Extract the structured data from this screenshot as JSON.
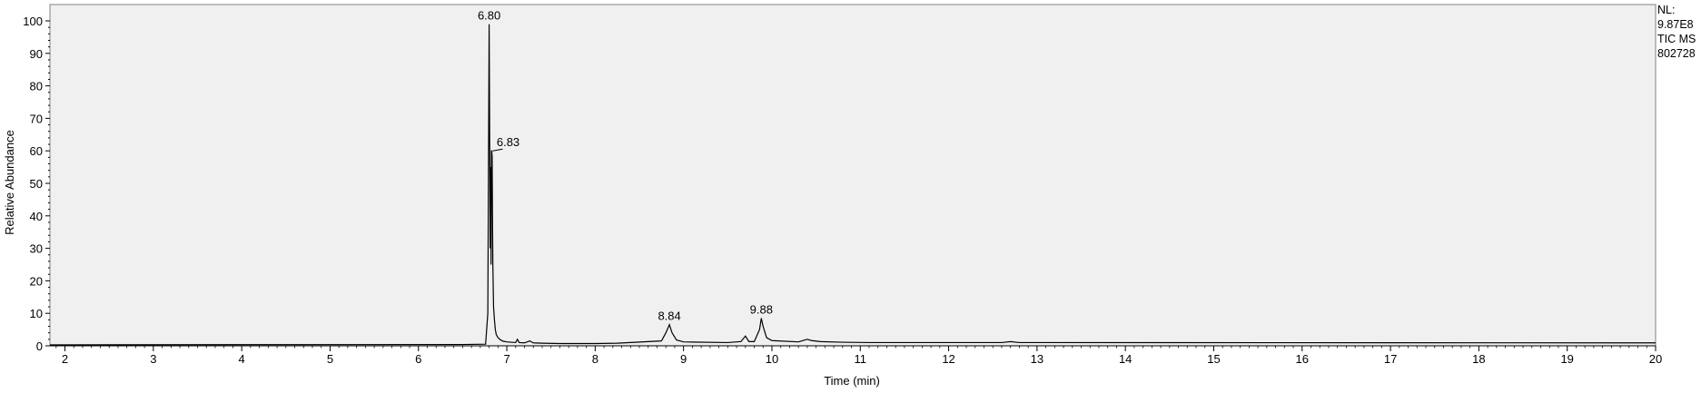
{
  "chart_data": {
    "type": "line",
    "xlabel": "Time (min)",
    "ylabel": "Relative Abundance",
    "xlim": [
      1.83,
      20
    ],
    "ylim": [
      0,
      100
    ],
    "x_ticks": [
      2,
      3,
      4,
      5,
      6,
      7,
      8,
      9,
      10,
      11,
      12,
      13,
      14,
      15,
      16,
      17,
      18,
      19,
      20
    ],
    "y_ticks": [
      0,
      10,
      20,
      30,
      40,
      50,
      60,
      70,
      80,
      90,
      100
    ],
    "grid": false,
    "series": [
      {
        "x": [
          1.83,
          6.5,
          6.76,
          6.785,
          6.8,
          6.805,
          6.812,
          6.818,
          6.822,
          6.826,
          6.83,
          6.834,
          6.838,
          6.842,
          6.85,
          6.86,
          6.87,
          6.88,
          6.9,
          6.93,
          6.96,
          7.0,
          7.05,
          7.1,
          7.12,
          7.14,
          7.2,
          7.26,
          7.3,
          7.4,
          7.6,
          8.0,
          8.25,
          8.75,
          8.8,
          8.84,
          8.87,
          8.92,
          9.0,
          9.5,
          9.65,
          9.7,
          9.74,
          9.8,
          9.86,
          9.88,
          9.9,
          9.94,
          10.0,
          10.3,
          10.4,
          10.45,
          10.55,
          10.8,
          11.1,
          12.6,
          12.7,
          12.8,
          20.0
        ],
        "y": [
          0.3,
          0.4,
          0.5,
          10,
          99,
          70,
          30,
          55,
          25,
          60,
          60,
          58,
          40,
          25,
          12,
          8,
          5,
          3.5,
          2.5,
          1.8,
          1.4,
          1.2,
          1.1,
          1.0,
          2.0,
          1.0,
          0.9,
          1.5,
          0.9,
          0.8,
          0.7,
          0.7,
          0.8,
          1.5,
          4,
          6.5,
          4,
          1.8,
          1.2,
          1.0,
          1.3,
          3,
          1.3,
          1.3,
          5,
          8.5,
          6,
          2.5,
          1.6,
          1.2,
          2.0,
          1.6,
          1.3,
          1.1,
          1.0,
          1.0,
          1.3,
          1.0,
          0.9
        ]
      }
    ],
    "peak_labels": [
      {
        "label": "6.80",
        "x": 6.8,
        "y": 99
      },
      {
        "label": "6.83",
        "x": 6.83,
        "y": 60
      },
      {
        "label": "8.84",
        "x": 8.84,
        "y": 6.5
      },
      {
        "label": "9.88",
        "x": 9.88,
        "y": 8.5
      }
    ]
  },
  "header": {
    "nl_label": "NL:",
    "nl_value": "9.87E8",
    "trace_type": "TIC  MS",
    "file_name": "802728"
  },
  "colors": {
    "plot_bg": "#f0f0f0",
    "trace": "#000000",
    "frame": "#808080"
  }
}
